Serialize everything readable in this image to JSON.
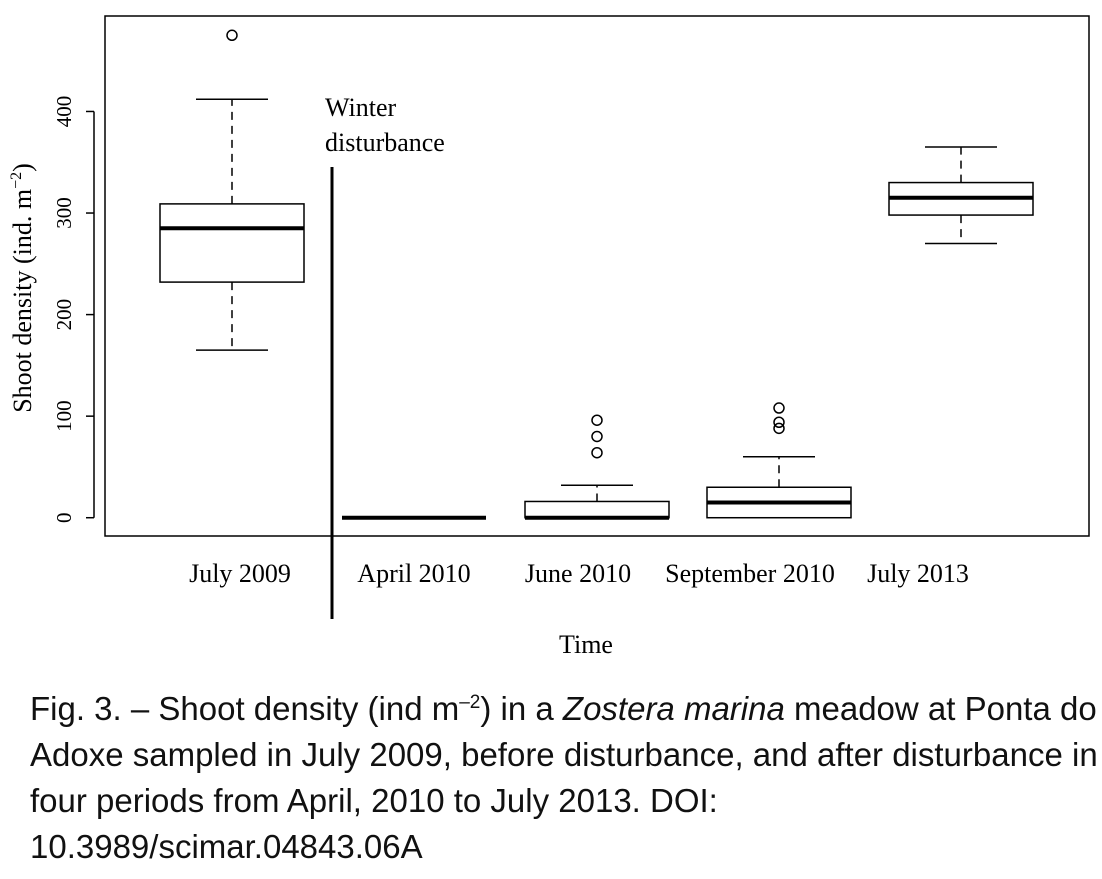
{
  "chart_data": {
    "type": "boxplot",
    "xlabel": "Time",
    "ylabel": "Shoot density (ind. m",
    "ylabel_sup": "−2",
    "ylabel_close": ")",
    "ylim": [
      -18,
      494
    ],
    "yticks": [
      0,
      100,
      200,
      300,
      400
    ],
    "annotation": {
      "line1": "Winter",
      "line2": "disturbance"
    },
    "categories": [
      "July 2009",
      "April 2010",
      "June 2010",
      "September 2010",
      "July 2013"
    ],
    "boxes": [
      {
        "label": "July 2009",
        "whisker_low": 165,
        "q1": 232,
        "median": 285,
        "q3": 309,
        "whisker_high": 412,
        "outliers": [
          475
        ]
      },
      {
        "label": "April 2010",
        "whisker_low": 0,
        "q1": 0,
        "median": 0,
        "q3": 0,
        "whisker_high": 0,
        "outliers": []
      },
      {
        "label": "June 2010",
        "whisker_low": 0,
        "q1": 0,
        "median": 0,
        "q3": 16,
        "whisker_high": 32,
        "outliers": [
          64,
          80,
          96
        ]
      },
      {
        "label": "September 2010",
        "whisker_low": 0,
        "q1": 0,
        "median": 15,
        "q3": 30,
        "whisker_high": 60,
        "outliers": [
          88,
          94,
          108
        ]
      },
      {
        "label": "July 2013",
        "whisker_low": 270,
        "q1": 298,
        "median": 315,
        "q3": 330,
        "whisker_high": 365,
        "outliers": []
      }
    ],
    "grid": false
  },
  "caption": {
    "prefix": "Fig. 3. – Shoot density (ind m",
    "sup": "–2",
    "mid": ") in a ",
    "species": "Zostera marina",
    "rest": " meadow at Ponta do Adoxe sampled in July 2009, before disturbance, and after disturbance in four periods from April, 2010 to July 2013. DOI: 10.3989/scimar.04843.06A"
  }
}
